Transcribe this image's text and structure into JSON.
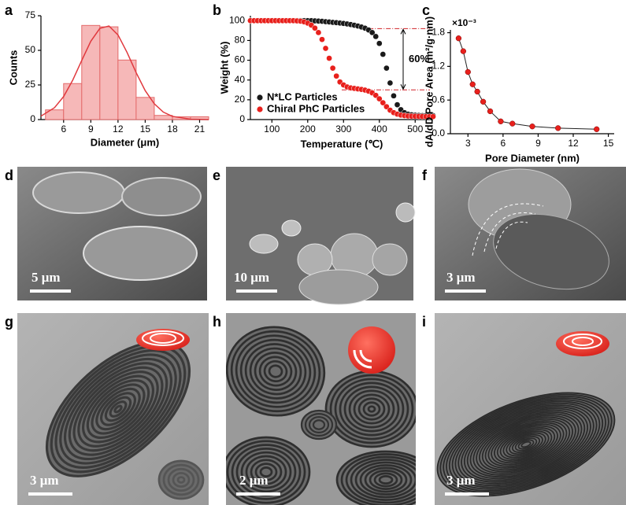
{
  "chart_data": [
    {
      "type": "histogram",
      "bins": [
        4,
        6,
        8,
        10,
        12,
        14,
        16,
        18,
        20,
        22
      ],
      "values": [
        7,
        26,
        68,
        67,
        43,
        16,
        3,
        2,
        2
      ],
      "color": "#f6b8b8",
      "edge_color": "#e46a6a",
      "fit": {
        "x": [
          3.5,
          5,
          6,
          7,
          8,
          9,
          10,
          11,
          12,
          13,
          14,
          15,
          16,
          17,
          18,
          20,
          22
        ],
        "values": [
          2.5,
          8.6,
          16.6,
          28.4,
          42.7,
          56.6,
          65.9,
          67.6,
          61.1,
          48.5,
          33.9,
          20.9,
          11.4,
          5.4,
          2.3,
          0.3,
          0
        ],
        "color": "#e0393e"
      },
      "xlabel": "Diameter (μm)",
      "ylabel": "Counts",
      "xlim": [
        3.5,
        22
      ],
      "ylim": [
        0,
        75
      ],
      "xticks": [
        6,
        9,
        12,
        15,
        18,
        21
      ],
      "yticks": [
        0,
        25,
        50,
        75
      ]
    },
    {
      "type": "scatter",
      "xlabel": "Temperature (℃)",
      "ylabel": "Weight (%)",
      "x": [
        40,
        50,
        60,
        70,
        80,
        90,
        100,
        110,
        120,
        130,
        140,
        150,
        160,
        170,
        180,
        190,
        200,
        210,
        220,
        230,
        240,
        250,
        260,
        270,
        280,
        290,
        300,
        310,
        320,
        330,
        340,
        350,
        360,
        370,
        380,
        390,
        400,
        410,
        420,
        430,
        440,
        450,
        460,
        470,
        480,
        490,
        500,
        510,
        520,
        530,
        540,
        550
      ],
      "series": [
        {
          "name": "N*LC Particles",
          "color": "#1a1a1a",
          "values": [
            100,
            100,
            100,
            100,
            100,
            100,
            100,
            100,
            100,
            100,
            100,
            100,
            100,
            100,
            100,
            100,
            100,
            100,
            99.8,
            99.6,
            99.4,
            99,
            98.7,
            98.3,
            98,
            97.6,
            97.2,
            96.7,
            96.1,
            95.4,
            94.6,
            93.6,
            92.4,
            90.6,
            88,
            84,
            77,
            66,
            52,
            37,
            24,
            15,
            10,
            7,
            5.5,
            4.8,
            4.4,
            4.2,
            4,
            4,
            4,
            4
          ]
        },
        {
          "name": "Chiral PhC Particles",
          "color": "#e8201c",
          "values": [
            100,
            100,
            100,
            100,
            100,
            100,
            100,
            100,
            100,
            100,
            100,
            100,
            100,
            99.8,
            99.5,
            98.8,
            97.5,
            95.5,
            92.5,
            88,
            81,
            72,
            62,
            52,
            44,
            38,
            35,
            33,
            32,
            31.5,
            31,
            30.5,
            29.8,
            28.7,
            27,
            24.5,
            21,
            17,
            13,
            9.5,
            7,
            5.5,
            4.5,
            4,
            3.6,
            3.4,
            3.3,
            3.2,
            3.1,
            3,
            3,
            3
          ]
        }
      ],
      "reference_lines": [
        92,
        30
      ],
      "reference_color": "#d0242a",
      "annotation": "60%",
      "legend": "lower left",
      "xlim": [
        40,
        550
      ],
      "ylim": [
        0,
        105
      ],
      "xticks": [
        100,
        200,
        300,
        400,
        500
      ],
      "yticks": [
        0,
        20,
        40,
        60,
        80,
        100
      ]
    },
    {
      "type": "line",
      "xlabel": "Pore Diameter (nm)",
      "ylabel": "dA/dD Pore Area (m²/g·nm)",
      "multiplier": "×10⁻³",
      "x": [
        2.2,
        2.6,
        3.0,
        3.4,
        3.8,
        4.3,
        4.9,
        5.8,
        6.8,
        8.5,
        10.7,
        14
      ],
      "values": [
        1.7,
        1.47,
        1.1,
        0.88,
        0.75,
        0.57,
        0.4,
        0.22,
        0.18,
        0.13,
        0.1,
        0.08
      ],
      "color": "#e8201c",
      "line_color": "#222222",
      "xlim": [
        1.5,
        15.5
      ],
      "ylim": [
        0,
        1.85
      ],
      "xticks": [
        3,
        6,
        9,
        12,
        15
      ],
      "yticks": [
        {
          "value": 0,
          "label": "0.0"
        },
        0.6,
        1.2,
        1.8
      ]
    }
  ],
  "panel_labels": [
    "a",
    "b",
    "c",
    "d",
    "e",
    "f",
    "g",
    "h",
    "i"
  ],
  "scale_bars": [
    "5 μm",
    "10 μm",
    "3 μm",
    "3 μm",
    "2 μm",
    "3 μm"
  ]
}
